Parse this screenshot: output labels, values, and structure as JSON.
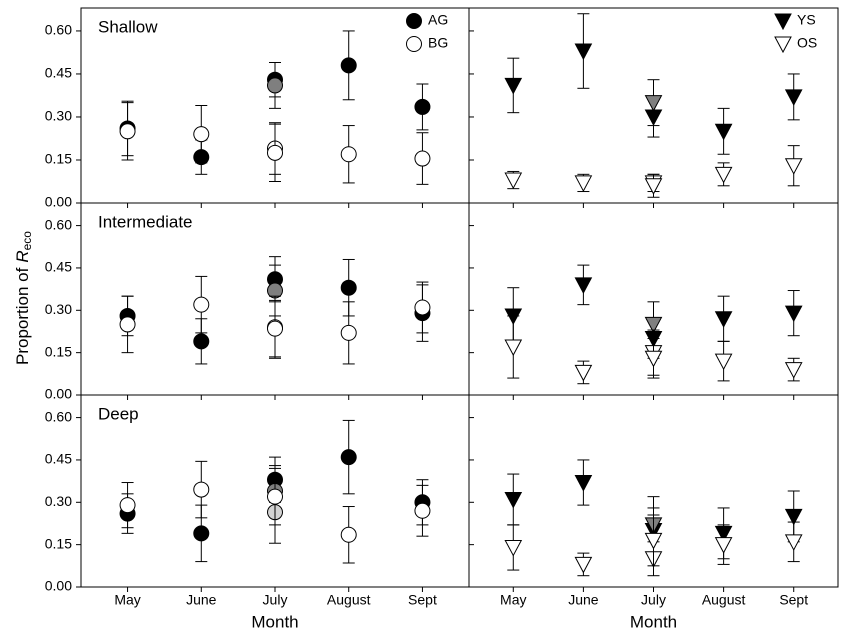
{
  "chart_data": [
    {
      "type": "scatter",
      "title": "Shallow",
      "ylabel": "Proportion of",
      "ylabel_symbol": "R",
      "ylabel_subscript": "eco",
      "ylim": [
        0,
        0.68
      ],
      "yticks": [
        {
          "value": 0,
          "label": "0.00"
        },
        0.15,
        {
          "value": 0.3,
          "label": "0.30"
        },
        0.45,
        {
          "value": 0.6,
          "label": "0.60"
        }
      ],
      "series": [
        {
          "name": "AG",
          "marker": "circle",
          "color": "#000000",
          "values": [
            0.26,
            0.16,
            0.43,
            0.48,
            0.335
          ],
          "errors": [
            0.095,
            0.06,
            0.06,
            0.12,
            0.08
          ]
        },
        {
          "marker": "circle",
          "color": "#7f7f7f",
          "values": [
            null,
            null,
            0.41,
            null,
            null
          ],
          "errors": [
            null,
            null,
            0.08,
            null,
            null
          ]
        },
        {
          "name": "BG",
          "marker": "circle",
          "color": "#ffffff",
          "values": [
            0.25,
            0.24,
            0.19,
            0.17,
            0.155
          ],
          "errors": [
            0.1,
            0.1,
            0.09,
            0.1,
            0.09
          ]
        },
        {
          "marker": "circle",
          "color": "#ffffff",
          "values": [
            null,
            null,
            0.175,
            null,
            null
          ],
          "errors": [
            null,
            null,
            0.1,
            null,
            null
          ]
        }
      ]
    },
    {
      "type": "scatter",
      "ylim": [
        0,
        0.68
      ],
      "yticks": [
        0,
        0.15,
        0.3,
        0.45,
        0.6
      ],
      "series": [
        {
          "name": "YS",
          "marker": "triangle-down",
          "color": "#000000",
          "values": [
            0.41,
            0.53,
            0.3,
            0.25,
            0.37
          ],
          "errors": [
            0.095,
            0.13,
            0.07,
            0.08,
            0.08
          ]
        },
        {
          "marker": "triangle-down",
          "color": "#7f7f7f",
          "values": [
            null,
            null,
            0.35,
            null,
            null
          ],
          "errors": [
            null,
            null,
            0.08,
            null,
            null
          ]
        },
        {
          "name": "OS",
          "marker": "triangle-down",
          "color": "#ffffff",
          "values": [
            0.08,
            0.07,
            0.07,
            0.1,
            0.13
          ],
          "errors": [
            0.03,
            0.03,
            0.03,
            0.04,
            0.07
          ]
        },
        {
          "marker": "triangle-down",
          "color": "#ffffff",
          "values": [
            null,
            null,
            0.06,
            null,
            null
          ],
          "errors": [
            null,
            null,
            0.04,
            null,
            null
          ]
        }
      ]
    },
    {
      "type": "scatter",
      "title": "Intermediate",
      "ylim": [
        0,
        0.68
      ],
      "yticks": [
        {
          "value": 0,
          "label": "0.00"
        },
        0.15,
        {
          "value": 0.3,
          "label": "0.30"
        },
        0.45,
        {
          "value": 0.6,
          "label": "0.60"
        }
      ],
      "series": [
        {
          "marker": "circle",
          "color": "#000000",
          "values": [
            0.28,
            0.19,
            0.41,
            0.38,
            0.29
          ],
          "errors": [
            0.07,
            0.08,
            0.08,
            0.1,
            0.1
          ]
        },
        {
          "marker": "circle",
          "color": "#7f7f7f",
          "values": [
            null,
            null,
            0.37,
            null,
            null
          ],
          "errors": [
            null,
            null,
            0.09,
            null,
            null
          ]
        },
        {
          "marker": "circle",
          "color": "#ffffff",
          "values": [
            0.25,
            0.32,
            0.24,
            0.22,
            0.31
          ],
          "errors": [
            0.1,
            0.1,
            0.11,
            0.11,
            0.09
          ]
        },
        {
          "marker": "circle",
          "color": "#ffffff",
          "values": [
            null,
            null,
            0.235,
            null,
            null
          ],
          "errors": [
            null,
            null,
            0.1,
            null,
            null
          ]
        }
      ]
    },
    {
      "type": "scatter",
      "ylim": [
        0,
        0.68
      ],
      "yticks": [
        0,
        0.15,
        0.3,
        0.45,
        0.6
      ],
      "series": [
        {
          "marker": "triangle-down",
          "color": "#000000",
          "values": [
            0.28,
            0.39,
            0.2,
            0.27,
            0.29
          ],
          "errors": [
            0.1,
            0.07,
            0.07,
            0.08,
            0.08
          ]
        },
        {
          "marker": "triangle-down",
          "color": "#7f7f7f",
          "values": [
            null,
            null,
            0.25,
            null,
            null
          ],
          "errors": [
            null,
            null,
            0.08,
            null,
            null
          ]
        },
        {
          "marker": "triangle-down",
          "color": "#ffffff",
          "values": [
            0.17,
            0.08,
            0.15,
            0.12,
            0.09
          ],
          "errors": [
            0.11,
            0.04,
            0.08,
            0.07,
            0.04
          ]
        },
        {
          "marker": "triangle-down",
          "color": "#ffffff",
          "values": [
            null,
            null,
            0.13,
            null,
            null
          ],
          "errors": [
            null,
            null,
            0.07,
            null,
            null
          ]
        }
      ]
    },
    {
      "type": "scatter",
      "title": "Deep",
      "xlabel": "Month",
      "categories": [
        "May",
        "June",
        "July",
        "August",
        "Sept"
      ],
      "ylim": [
        0,
        0.68
      ],
      "yticks": [
        {
          "value": 0,
          "label": "0.00"
        },
        0.15,
        {
          "value": 0.3,
          "label": "0.30"
        },
        0.45,
        {
          "value": 0.6,
          "label": "0.60"
        }
      ],
      "series": [
        {
          "marker": "circle",
          "color": "#000000",
          "values": [
            0.26,
            0.19,
            0.38,
            0.46,
            0.3
          ],
          "errors": [
            0.07,
            0.1,
            0.08,
            0.13,
            0.08
          ]
        },
        {
          "marker": "circle",
          "color": "#7f7f7f",
          "values": [
            null,
            null,
            0.34,
            null,
            null
          ],
          "errors": [
            null,
            null,
            0.09,
            null,
            null
          ]
        },
        {
          "marker": "circle",
          "color": "#d3d3d3",
          "values": [
            null,
            null,
            0.265,
            null,
            null
          ],
          "errors": [
            null,
            null,
            0.11,
            null,
            null
          ]
        },
        {
          "marker": "circle",
          "color": "#ffffff",
          "values": [
            0.29,
            0.345,
            0.32,
            0.185,
            0.27
          ],
          "errors": [
            0.08,
            0.1,
            0.1,
            0.1,
            0.09
          ]
        }
      ]
    },
    {
      "type": "scatter",
      "xlabel": "Month",
      "categories": [
        "May",
        "June",
        "July",
        "August",
        "Sept"
      ],
      "ylim": [
        0,
        0.68
      ],
      "yticks": [
        0,
        0.15,
        0.3,
        0.45,
        0.6
      ],
      "series": [
        {
          "marker": "triangle-down",
          "color": "#000000",
          "values": [
            0.31,
            0.37,
            0.2,
            0.19,
            0.25
          ],
          "errors": [
            0.09,
            0.08,
            0.08,
            0.09,
            0.09
          ]
        },
        {
          "marker": "triangle-down",
          "color": "#7f7f7f",
          "values": [
            null,
            null,
            0.22,
            null,
            null
          ],
          "errors": [
            null,
            null,
            0.1,
            null,
            null
          ]
        },
        {
          "marker": "triangle-down",
          "color": "#ffffff",
          "values": [
            0.14,
            0.08,
            0.1,
            0.15,
            0.16
          ],
          "errors": [
            0.08,
            0.04,
            0.06,
            0.07,
            0.07
          ]
        },
        {
          "marker": "triangle-down",
          "color": "#ffffff",
          "values": [
            null,
            null,
            0.165,
            null,
            null
          ],
          "errors": [
            null,
            null,
            0.09,
            null,
            null
          ]
        }
      ]
    }
  ]
}
